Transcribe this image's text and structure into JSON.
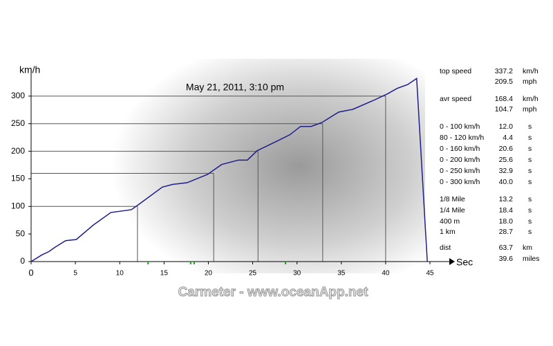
{
  "chart_data": {
    "type": "line",
    "title": "May 21, 2011, 3:10 pm",
    "y_label": "km/h",
    "x_label": "Sec",
    "x": [
      0,
      1.2,
      2.0,
      2.7,
      3.9,
      5.1,
      7.0,
      9.0,
      11.3,
      12.1,
      14.8,
      16.0,
      17.6,
      19.9,
      21.5,
      23.4,
      24.4,
      25.5,
      27.7,
      29.2,
      30.4,
      31.6,
      32.8,
      34.7,
      36.3,
      38.6,
      40.2,
      41.3,
      42.5,
      43.5,
      44.7
    ],
    "series": [
      {
        "name": "speed",
        "color": "#1c1c8a",
        "values": [
          0,
          12,
          18,
          26,
          38,
          40,
          66,
          89,
          94,
          103,
          135,
          140,
          143,
          158,
          176,
          184,
          184,
          201,
          218,
          230,
          245,
          245,
          252,
          271,
          276,
          292,
          304,
          314,
          321,
          332,
          0
        ]
      }
    ],
    "markers": [
      {
        "speed": 100,
        "time": 12.0
      },
      {
        "speed": 160,
        "time": 20.6
      },
      {
        "speed": 200,
        "time": 25.6
      },
      {
        "speed": 250,
        "time": 32.9
      },
      {
        "speed": 300,
        "time": 40.0
      }
    ],
    "xlim": [
      0,
      45
    ],
    "xticks": [
      0,
      5,
      10,
      15,
      20,
      25,
      30,
      35,
      40,
      45
    ],
    "ylim": [
      0,
      345
    ],
    "yticks": [
      0,
      50,
      100,
      150,
      200,
      250,
      300
    ]
  },
  "stats": [
    {
      "rows": [
        {
          "label": "top speed",
          "value": "337.2",
          "unit": "km/h"
        },
        {
          "value": "209.5",
          "unit": "mph"
        }
      ]
    },
    {
      "rows": [
        {
          "label": "avr speed",
          "value": "168.4",
          "unit": "km/h"
        },
        {
          "value": "104.7",
          "unit": "mph"
        }
      ]
    },
    {
      "rows": [
        {
          "label": "0 - 100 km/h",
          "value": "12.0",
          "unit": "s"
        },
        {
          "label": "80 - 120 km/h",
          "value": "4.4",
          "unit": "s"
        },
        {
          "label": "0 - 160 km/h",
          "value": "20.6",
          "unit": "s"
        },
        {
          "label": "0 - 200 km/h",
          "value": "25.6",
          "unit": "s"
        },
        {
          "label": "0 - 250 km/h",
          "value": "32.9",
          "unit": "s"
        },
        {
          "label": "0 - 300 km/h",
          "value": "40.0",
          "unit": "s"
        }
      ]
    },
    {
      "rows": [
        {
          "label": "1/8 Mile",
          "value": "13.2",
          "unit": "s"
        },
        {
          "label": "1/4 Mile",
          "value": "18.4",
          "unit": "s"
        },
        {
          "label": "400 m",
          "value": "18.0",
          "unit": "s"
        },
        {
          "label": "1 km",
          "value": "28.7",
          "unit": "s"
        }
      ]
    },
    {
      "rows": [
        {
          "label": "dist",
          "value": "63.7",
          "unit": "km"
        },
        {
          "value": "39.6",
          "unit": "miles"
        }
      ]
    }
  ],
  "footer": "Carmeter - www.oceanApp.net"
}
